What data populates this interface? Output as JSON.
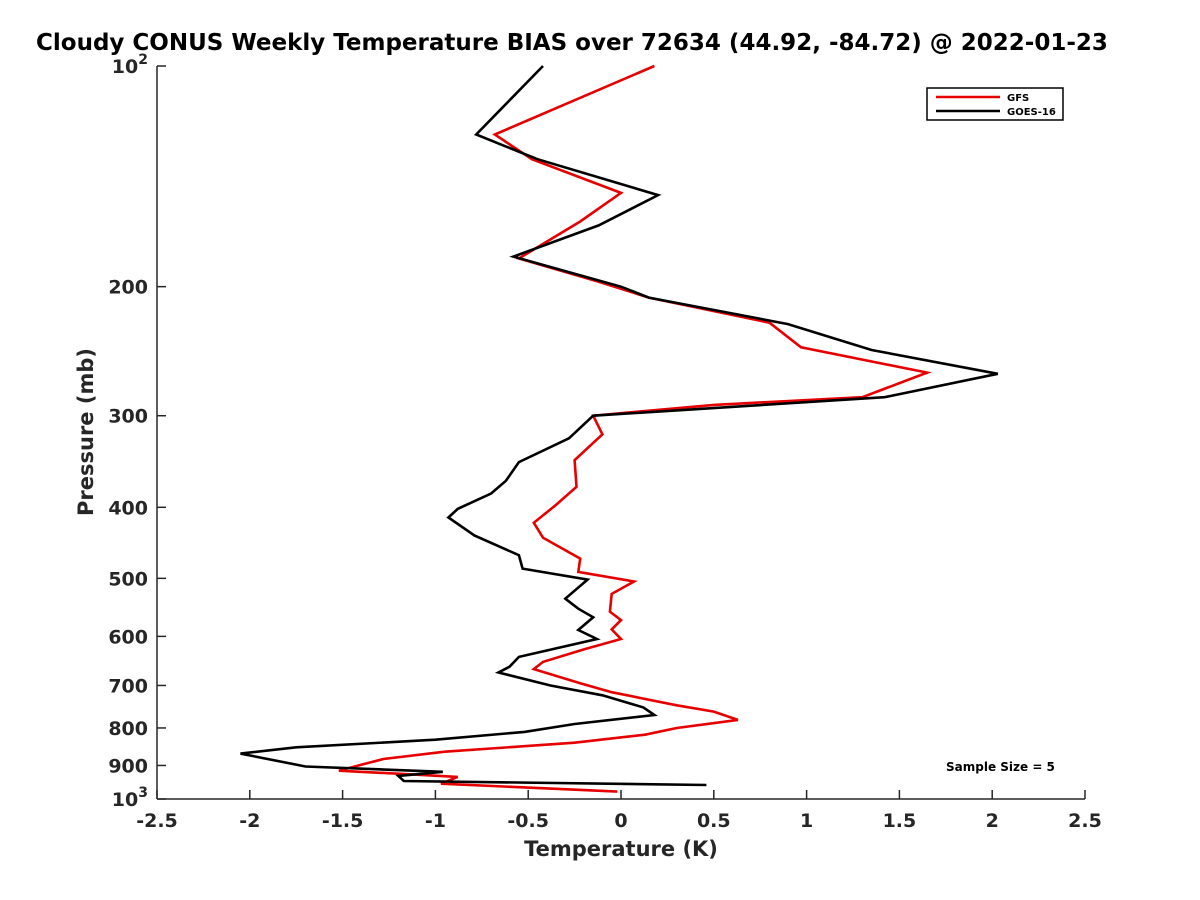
{
  "chart_data": {
    "type": "line",
    "title": "Cloudy CONUS Weekly Temperature BIAS over 72634 (44.92, -84.72) @ 2022-01-23",
    "xlabel": "Temperature (K)",
    "ylabel": "Pressure (mb)",
    "xlim": [
      -2.5,
      2.5
    ],
    "ylim": [
      100,
      1000
    ],
    "y_scale": "log",
    "y_reversed": true,
    "grid": false,
    "legend_position": "top-right",
    "x_ticks": [
      -2.5,
      -2,
      -1.5,
      -1,
      -0.5,
      0,
      0.5,
      1,
      1.5,
      2,
      2.5
    ],
    "x_tick_labels": [
      "-2.5",
      "-2",
      "-1.5",
      "-1",
      "-0.5",
      "0",
      "0.5",
      "1",
      "1.5",
      "2",
      "2.5"
    ],
    "y_ticks": [
      100,
      200,
      300,
      400,
      500,
      600,
      700,
      800,
      900,
      1000
    ],
    "y_tick_labels": [
      {
        "base": "10",
        "exp": "2"
      },
      {
        "base": "200",
        "exp": ""
      },
      {
        "base": "300",
        "exp": ""
      },
      {
        "base": "400",
        "exp": ""
      },
      {
        "base": "500",
        "exp": ""
      },
      {
        "base": "600",
        "exp": ""
      },
      {
        "base": "700",
        "exp": ""
      },
      {
        "base": "800",
        "exp": ""
      },
      {
        "base": "900",
        "exp": ""
      },
      {
        "base": "10",
        "exp": "3"
      }
    ],
    "series": [
      {
        "name": "GFS",
        "color": "#e60000",
        "points": [
          [
            0.18,
            100
          ],
          [
            -0.68,
            124
          ],
          [
            -0.48,
            134
          ],
          [
            0.0,
            149
          ],
          [
            -0.22,
            163
          ],
          [
            -0.55,
            183
          ],
          [
            -0.12,
            197
          ],
          [
            0.15,
            207
          ],
          [
            0.8,
            224
          ],
          [
            0.97,
            242
          ],
          [
            1.65,
            262
          ],
          [
            1.3,
            283
          ],
          [
            0.5,
            290
          ],
          [
            -0.15,
            300
          ],
          [
            -0.1,
            318
          ],
          [
            -0.25,
            345
          ],
          [
            -0.24,
            375
          ],
          [
            -0.35,
            397
          ],
          [
            -0.47,
            420
          ],
          [
            -0.42,
            440
          ],
          [
            -0.22,
            470
          ],
          [
            -0.23,
            490
          ],
          [
            0.07,
            505
          ],
          [
            -0.05,
            525
          ],
          [
            -0.06,
            555
          ],
          [
            0.0,
            570
          ],
          [
            -0.05,
            587
          ],
          [
            0.0,
            605
          ],
          [
            -0.2,
            625
          ],
          [
            -0.42,
            650
          ],
          [
            -0.47,
            665
          ],
          [
            -0.22,
            695
          ],
          [
            -0.05,
            715
          ],
          [
            0.3,
            745
          ],
          [
            0.5,
            760
          ],
          [
            0.63,
            780
          ],
          [
            0.3,
            800
          ],
          [
            0.13,
            817
          ],
          [
            -0.25,
            838
          ],
          [
            -0.95,
            862
          ],
          [
            -1.28,
            882
          ],
          [
            -1.4,
            898
          ],
          [
            -1.52,
            915
          ],
          [
            -1.15,
            925
          ],
          [
            -0.88,
            933
          ],
          [
            -0.97,
            953
          ],
          [
            -0.02,
            977
          ]
        ]
      },
      {
        "name": "GOES-16",
        "color": "#000000",
        "points": [
          [
            -0.42,
            100
          ],
          [
            -0.78,
            124
          ],
          [
            -0.45,
            134
          ],
          [
            0.2,
            150
          ],
          [
            -0.12,
            165
          ],
          [
            -0.58,
            182
          ],
          [
            0.0,
            200
          ],
          [
            0.15,
            207
          ],
          [
            0.9,
            225
          ],
          [
            1.35,
            244
          ],
          [
            2.03,
            263
          ],
          [
            1.42,
            283
          ],
          [
            -0.15,
            300
          ],
          [
            -0.28,
            322
          ],
          [
            -0.55,
            347
          ],
          [
            -0.62,
            368
          ],
          [
            -0.7,
            383
          ],
          [
            -0.88,
            402
          ],
          [
            -0.93,
            413
          ],
          [
            -0.79,
            437
          ],
          [
            -0.55,
            465
          ],
          [
            -0.53,
            485
          ],
          [
            -0.18,
            502
          ],
          [
            -0.3,
            533
          ],
          [
            -0.23,
            550
          ],
          [
            -0.15,
            565
          ],
          [
            -0.23,
            588
          ],
          [
            -0.13,
            605
          ],
          [
            -0.55,
            640
          ],
          [
            -0.6,
            660
          ],
          [
            -0.66,
            672
          ],
          [
            -0.38,
            700
          ],
          [
            -0.1,
            722
          ],
          [
            0.12,
            750
          ],
          [
            0.18,
            768
          ],
          [
            -0.25,
            790
          ],
          [
            -0.52,
            810
          ],
          [
            -1.0,
            830
          ],
          [
            -1.75,
            850
          ],
          [
            -2.05,
            867
          ],
          [
            -1.7,
            903
          ],
          [
            -0.96,
            918
          ],
          [
            -1.2,
            930
          ],
          [
            -1.17,
            945
          ],
          [
            0.46,
            957
          ]
        ]
      }
    ],
    "annotation": "Sample Size = 5"
  }
}
